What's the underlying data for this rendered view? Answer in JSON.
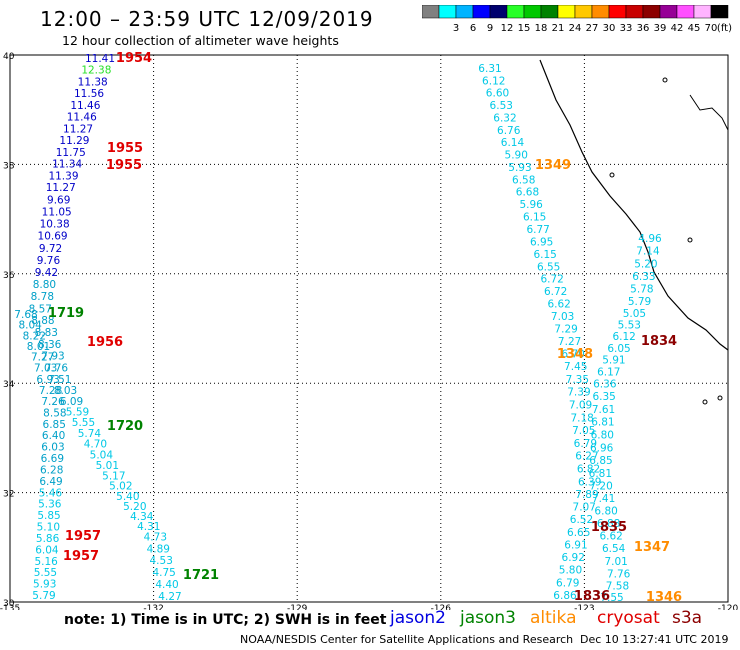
{
  "header": {
    "title": "12:00 – 23:59 UTC 12/09/2019",
    "subtitle": "12 hour collection of altimeter wave heights"
  },
  "colorbar": {
    "unit": "(ft)",
    "swatches": [
      {
        "color": "#808080",
        "label": ""
      },
      {
        "color": "#00ffff",
        "label": "3"
      },
      {
        "color": "#00b4ff",
        "label": "6"
      },
      {
        "color": "#0000ff",
        "label": "9"
      },
      {
        "color": "#00006e",
        "label": "12"
      },
      {
        "color": "#28ff28",
        "label": "15"
      },
      {
        "color": "#00c800",
        "label": "18"
      },
      {
        "color": "#008200",
        "label": "21"
      },
      {
        "color": "#ffff00",
        "label": "24"
      },
      {
        "color": "#ffc800",
        "label": "27"
      },
      {
        "color": "#ff8c00",
        "label": "30"
      },
      {
        "color": "#ff0000",
        "label": "33"
      },
      {
        "color": "#c80000",
        "label": "36"
      },
      {
        "color": "#8c0000",
        "label": "39"
      },
      {
        "color": "#960096",
        "label": "42"
      },
      {
        "color": "#ff50ff",
        "label": "45"
      },
      {
        "color": "#ffb4ff",
        "label": "70"
      },
      {
        "color": "#000000",
        "label": ""
      }
    ]
  },
  "map": {
    "lat_labels": [
      "40",
      "38",
      "36",
      "34",
      "32",
      "30"
    ],
    "lon_labels": [
      "-135",
      "-132",
      "-129",
      "-126",
      "-123",
      "-120"
    ],
    "tracks": [
      {
        "track": "west",
        "values": [
          {
            "v": "11.41",
            "c": "#0000c8"
          },
          {
            "v": "12.38",
            "c": "#28e028"
          },
          {
            "v": "11.38",
            "c": "#0000c8"
          },
          {
            "v": "11.56",
            "c": "#0000c8"
          },
          {
            "v": "11.46",
            "c": "#0000c8"
          },
          {
            "v": "11.46",
            "c": "#0000c8"
          },
          {
            "v": "11.27",
            "c": "#0000c8"
          },
          {
            "v": "11.29",
            "c": "#0000c8"
          },
          {
            "v": "11.75",
            "c": "#0000c8"
          },
          {
            "v": "11.34",
            "c": "#0000c8"
          },
          {
            "v": "11.39",
            "c": "#0000c8"
          },
          {
            "v": "11.27",
            "c": "#0000c8"
          },
          {
            "v": "9.69",
            "c": "#0000c8"
          },
          {
            "v": "11.05",
            "c": "#0000c8"
          },
          {
            "v": "10.38",
            "c": "#0000c8"
          },
          {
            "v": "10.69",
            "c": "#0000c8"
          },
          {
            "v": "9.72",
            "c": "#0000c8"
          },
          {
            "v": "9.76",
            "c": "#0000c8"
          },
          {
            "v": "9.42",
            "c": "#0000c8"
          },
          {
            "v": "8.80",
            "c": "#00a0c8"
          },
          {
            "v": "8.78",
            "c": "#00a0c8"
          },
          {
            "v": "8.57",
            "c": "#00a0c8"
          },
          {
            "v": "8.88",
            "c": "#00a0c8"
          },
          {
            "v": "8.83",
            "c": "#00a0c8"
          },
          {
            "v": "8.36",
            "c": "#00a0c8"
          },
          {
            "v": "7.93",
            "c": "#00a0c8"
          },
          {
            "v": "7.76",
            "c": "#00a0c8"
          },
          {
            "v": "7.51",
            "c": "#00a0c8"
          },
          {
            "v": "8.03",
            "c": "#00a0c8"
          },
          {
            "v": "6.09",
            "c": "#00a0c8"
          },
          {
            "v": "5.59",
            "c": "#00c8e6"
          },
          {
            "v": "5.55",
            "c": "#00c8e6"
          },
          {
            "v": "5.74",
            "c": "#00c8e6"
          },
          {
            "v": "4.70",
            "c": "#00c8e6"
          },
          {
            "v": "5.04",
            "c": "#00c8e6"
          },
          {
            "v": "5.01",
            "c": "#00c8e6"
          },
          {
            "v": "5.17",
            "c": "#00c8e6"
          },
          {
            "v": "5.02",
            "c": "#00c8e6"
          },
          {
            "v": "5.40",
            "c": "#00c8e6"
          },
          {
            "v": "5.20",
            "c": "#00c8e6"
          },
          {
            "v": "4.34",
            "c": "#00c8e6"
          },
          {
            "v": "4.31",
            "c": "#00c8e6"
          },
          {
            "v": "4.73",
            "c": "#00c8e6"
          },
          {
            "v": "4.89",
            "c": "#00c8e6"
          },
          {
            "v": "4.53",
            "c": "#00c8e6"
          },
          {
            "v": "4.75",
            "c": "#00c8e6"
          },
          {
            "v": "4.40",
            "c": "#00c8e6"
          },
          {
            "v": "4.27",
            "c": "#00c8e6"
          }
        ]
      },
      {
        "track": "west2",
        "values": [
          {
            "v": "7.68",
            "c": "#00a0c8"
          },
          {
            "v": "8.04",
            "c": "#00a0c8"
          },
          {
            "v": "8.22",
            "c": "#00a0c8"
          },
          {
            "v": "8.01",
            "c": "#00a0c8"
          },
          {
            "v": "7.27",
            "c": "#00a0c8"
          },
          {
            "v": "7.03",
            "c": "#00a0c8"
          },
          {
            "v": "6.93",
            "c": "#00a0c8"
          },
          {
            "v": "7.28",
            "c": "#00a0c8"
          },
          {
            "v": "7.26",
            "c": "#00a0c8"
          },
          {
            "v": "8.58",
            "c": "#00a0c8"
          },
          {
            "v": "6.85",
            "c": "#00a0c8"
          },
          {
            "v": "6.40",
            "c": "#00a0c8"
          },
          {
            "v": "6.03",
            "c": "#00a0c8"
          },
          {
            "v": "6.69",
            "c": "#00a0c8"
          },
          {
            "v": "6.28",
            "c": "#00a0c8"
          },
          {
            "v": "6.49",
            "c": "#00a0c8"
          },
          {
            "v": "5.46",
            "c": "#00c8e6"
          },
          {
            "v": "5.36",
            "c": "#00c8e6"
          },
          {
            "v": "5.85",
            "c": "#00c8e6"
          },
          {
            "v": "5.10",
            "c": "#00c8e6"
          },
          {
            "v": "5.86",
            "c": "#00c8e6"
          },
          {
            "v": "6.04",
            "c": "#00c8e6"
          },
          {
            "v": "5.16",
            "c": "#00c8e6"
          },
          {
            "v": "5.55",
            "c": "#00c8e6"
          },
          {
            "v": "5.93",
            "c": "#00c8e6"
          },
          {
            "v": "5.79",
            "c": "#00c8e6"
          }
        ]
      },
      {
        "track": "east1",
        "values": [
          {
            "v": "6.31",
            "c": "#00c8e6"
          },
          {
            "v": "6.12",
            "c": "#00c8e6"
          },
          {
            "v": "6.60",
            "c": "#00c8e6"
          },
          {
            "v": "6.53",
            "c": "#00c8e6"
          },
          {
            "v": "6.32",
            "c": "#00c8e6"
          },
          {
            "v": "6.76",
            "c": "#00c8e6"
          },
          {
            "v": "6.14",
            "c": "#00c8e6"
          },
          {
            "v": "5.90",
            "c": "#00c8e6"
          },
          {
            "v": "5.93",
            "c": "#00c8e6"
          },
          {
            "v": "6.58",
            "c": "#00c8e6"
          },
          {
            "v": "6.68",
            "c": "#00c8e6"
          },
          {
            "v": "5.96",
            "c": "#00c8e6"
          },
          {
            "v": "6.15",
            "c": "#00c8e6"
          },
          {
            "v": "6.77",
            "c": "#00c8e6"
          },
          {
            "v": "6.95",
            "c": "#00c8e6"
          },
          {
            "v": "6.15",
            "c": "#00c8e6"
          },
          {
            "v": "6.55",
            "c": "#00c8e6"
          },
          {
            "v": "6.72",
            "c": "#00c8e6"
          },
          {
            "v": "6.72",
            "c": "#00c8e6"
          },
          {
            "v": "6.62",
            "c": "#00c8e6"
          },
          {
            "v": "7.03",
            "c": "#00c8e6"
          },
          {
            "v": "7.29",
            "c": "#00c8e6"
          },
          {
            "v": "7.27",
            "c": "#00c8e6"
          },
          {
            "v": "6.70",
            "c": "#00c8e6"
          },
          {
            "v": "7.45",
            "c": "#00c8e6"
          },
          {
            "v": "7.35",
            "c": "#00c8e6"
          },
          {
            "v": "7.39",
            "c": "#00c8e6"
          },
          {
            "v": "7.09",
            "c": "#00c8e6"
          },
          {
            "v": "7.18",
            "c": "#00c8e6"
          },
          {
            "v": "7.05",
            "c": "#00c8e6"
          },
          {
            "v": "6.79",
            "c": "#00c8e6"
          },
          {
            "v": "6.27",
            "c": "#00c8e6"
          },
          {
            "v": "6.82",
            "c": "#00c8e6"
          },
          {
            "v": "6.39",
            "c": "#00c8e6"
          },
          {
            "v": "7.89",
            "c": "#00c8e6"
          },
          {
            "v": "7.07",
            "c": "#00c8e6"
          },
          {
            "v": "6.52",
            "c": "#00c8e6"
          },
          {
            "v": "6.65",
            "c": "#00c8e6"
          },
          {
            "v": "6.91",
            "c": "#00c8e6"
          },
          {
            "v": "6.92",
            "c": "#00c8e6"
          },
          {
            "v": "5.80",
            "c": "#00c8e6"
          },
          {
            "v": "6.79",
            "c": "#00c8e6"
          },
          {
            "v": "6.86",
            "c": "#00c8e6"
          }
        ]
      },
      {
        "track": "east2",
        "values": [
          {
            "v": "4.96",
            "c": "#00c8e6"
          },
          {
            "v": "7.14",
            "c": "#00c8e6"
          },
          {
            "v": "5.20",
            "c": "#00c8e6"
          },
          {
            "v": "6.33",
            "c": "#00c8e6"
          },
          {
            "v": "5.78",
            "c": "#00c8e6"
          },
          {
            "v": "5.79",
            "c": "#00c8e6"
          },
          {
            "v": "5.05",
            "c": "#00c8e6"
          },
          {
            "v": "5.53",
            "c": "#00c8e6"
          },
          {
            "v": "6.12",
            "c": "#00c8e6"
          },
          {
            "v": "6.05",
            "c": "#00c8e6"
          },
          {
            "v": "5.91",
            "c": "#00c8e6"
          },
          {
            "v": "6.17",
            "c": "#00c8e6"
          },
          {
            "v": "6.36",
            "c": "#00c8e6"
          },
          {
            "v": "6.35",
            "c": "#00c8e6"
          },
          {
            "v": "7.61",
            "c": "#00c8e6"
          },
          {
            "v": "6.81",
            "c": "#00c8e6"
          },
          {
            "v": "6.80",
            "c": "#00c8e6"
          },
          {
            "v": "6.96",
            "c": "#00c8e6"
          },
          {
            "v": "6.85",
            "c": "#00c8e6"
          },
          {
            "v": "6.81",
            "c": "#00c8e6"
          },
          {
            "v": "7.20",
            "c": "#00c8e6"
          },
          {
            "v": "7.41",
            "c": "#00c8e6"
          },
          {
            "v": "6.80",
            "c": "#00c8e6"
          },
          {
            "v": "6.88",
            "c": "#00c8e6"
          },
          {
            "v": "6.62",
            "c": "#00c8e6"
          },
          {
            "v": "6.54",
            "c": "#00c8e6"
          },
          {
            "v": "7.01",
            "c": "#00c8e6"
          },
          {
            "v": "7.76",
            "c": "#00c8e6"
          },
          {
            "v": "7.58",
            "c": "#00c8e6"
          },
          {
            "v": "7.55",
            "c": "#00c8e6"
          }
        ]
      }
    ],
    "time_labels": [
      {
        "t": "1954",
        "c": "#e00000"
      },
      {
        "t": "1955",
        "c": "#e00000"
      },
      {
        "t": "1955",
        "c": "#e00000"
      },
      {
        "t": "1719",
        "c": "#008200"
      },
      {
        "t": "1956",
        "c": "#e00000"
      },
      {
        "t": "1720",
        "c": "#008200"
      },
      {
        "t": "1957",
        "c": "#e00000"
      },
      {
        "t": "1957",
        "c": "#e00000"
      },
      {
        "t": "1721",
        "c": "#008200"
      },
      {
        "t": "1349",
        "c": "#ff8c00"
      },
      {
        "t": "1348",
        "c": "#ff8c00"
      },
      {
        "t": "1834",
        "c": "#8c0000"
      },
      {
        "t": "1835",
        "c": "#8c0000"
      },
      {
        "t": "1347",
        "c": "#ff8c00"
      },
      {
        "t": "1836",
        "c": "#8c0000"
      },
      {
        "t": "1346",
        "c": "#ff8c00"
      }
    ]
  },
  "footer": {
    "note": "note: 1) Time is in UTC; 2) SWH is in feet",
    "satellites": [
      {
        "name": "jason2",
        "color": "#0000e0"
      },
      {
        "name": "jason3",
        "color": "#008200"
      },
      {
        "name": "altika",
        "color": "#ff8c00"
      },
      {
        "name": "cryosat",
        "color": "#e00000"
      },
      {
        "name": "s3a",
        "color": "#8c0000"
      }
    ],
    "credit": "NOAA/NESDIS Center for Satellite Applications and Research",
    "timestamp": "Dec 10 13:27:41 UTC 2019"
  }
}
